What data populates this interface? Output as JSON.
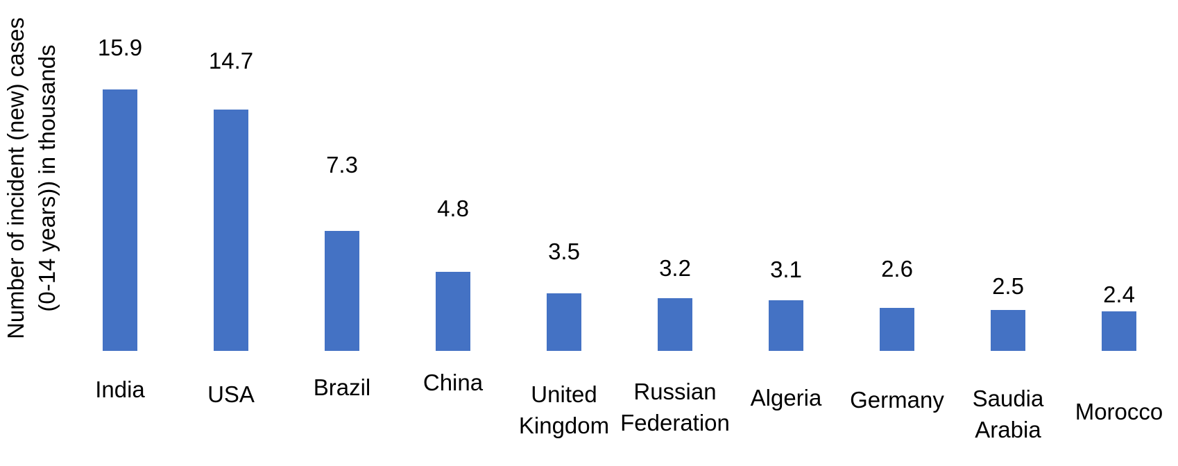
{
  "chart_data": {
    "type": "bar",
    "title": "",
    "xlabel": "",
    "ylabel": "Number of incident (new) cases (0-14 years)) in thousands",
    "ylabel_lines": [
      "Number of incident (new) cases",
      "(0-14 years)) in thousands"
    ],
    "categories": [
      "India",
      "USA",
      "Brazil",
      "China",
      "United Kingdom",
      "Russian Federation",
      "Algeria",
      "Germany",
      "Saudia Arabia",
      "Morocco"
    ],
    "categories_lines": [
      [
        "India"
      ],
      [
        "USA"
      ],
      [
        "Brazil"
      ],
      [
        "China"
      ],
      [
        "United",
        "Kingdom"
      ],
      [
        "Russian",
        "Federation"
      ],
      [
        "Algeria"
      ],
      [
        "Germany"
      ],
      [
        "Saudia",
        "Arabia"
      ],
      [
        "Morocco"
      ]
    ],
    "values": [
      15.9,
      14.7,
      7.3,
      4.8,
      3.5,
      3.2,
      3.1,
      2.6,
      2.5,
      2.4
    ],
    "data_labels": [
      "15.9",
      "14.7",
      "7.3",
      "4.8",
      "3.5",
      "3.2",
      "3.1",
      "2.6",
      "2.5",
      "2.4"
    ],
    "ylim": [
      0,
      16
    ],
    "bar_color": "#4472C4",
    "text_color": "#000000",
    "background_color": "#FFFFFF",
    "grid": false,
    "legend": false,
    "axes_visible": false,
    "data_label_position": "outside-end"
  }
}
